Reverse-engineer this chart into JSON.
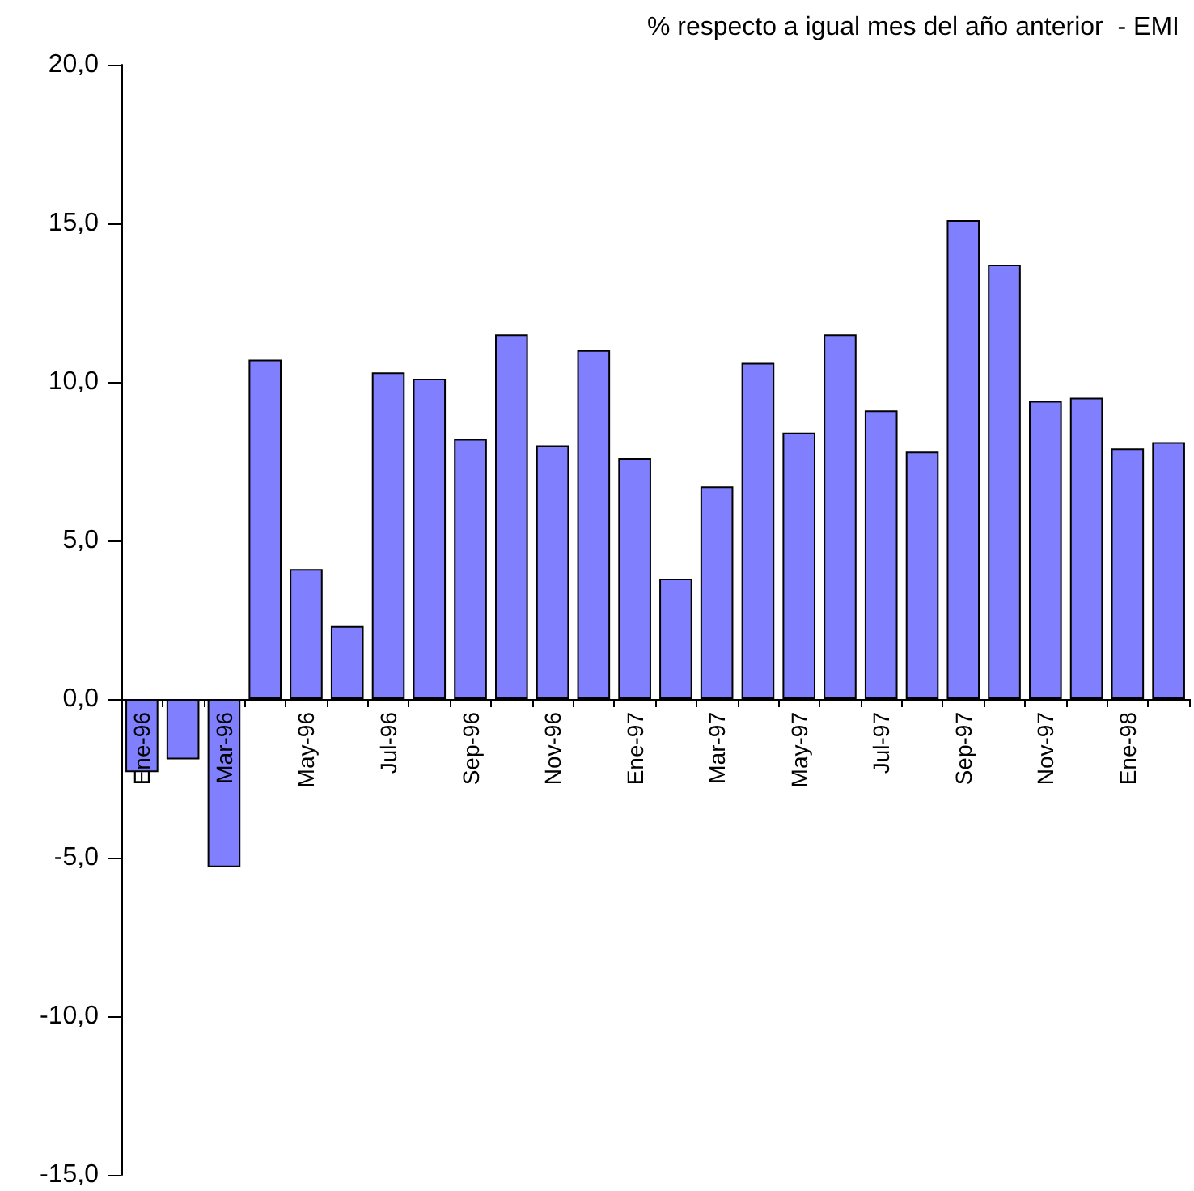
{
  "chart_data": {
    "type": "bar",
    "title": "% respecto a igual mes del año anterior  - EMI",
    "categories": [
      "Ene-96",
      null,
      "Mar-96",
      null,
      "May-96",
      null,
      "Jul-96",
      null,
      "Sep-96",
      null,
      "Nov-96",
      null,
      "Ene-97",
      null,
      "Mar-97",
      null,
      "May-97",
      null,
      "Jul-97",
      null,
      "Sep-97",
      null,
      "Nov-97",
      null,
      "Ene-98",
      null
    ],
    "values": [
      -2.3,
      -1.9,
      -5.3,
      10.7,
      4.1,
      2.3,
      10.3,
      10.1,
      8.2,
      11.5,
      8.0,
      11.0,
      7.6,
      3.8,
      6.7,
      10.6,
      8.4,
      11.5,
      9.1,
      7.8,
      15.1,
      13.7,
      9.4,
      9.5,
      7.9,
      8.1
    ],
    "color": "#8080ff",
    "ylim": [
      -15,
      20
    ],
    "yticks": [
      {
        "value": -15,
        "label": "-15,0"
      },
      {
        "value": -10,
        "label": "-10,0"
      },
      {
        "value": -5,
        "label": "-5,0"
      },
      {
        "value": 0,
        "label": "0,0"
      },
      {
        "value": 5,
        "label": "5,0"
      },
      {
        "value": 10,
        "label": "10,0"
      },
      {
        "value": 15,
        "label": "15,0"
      },
      {
        "value": 20,
        "label": "20,0"
      }
    ]
  }
}
